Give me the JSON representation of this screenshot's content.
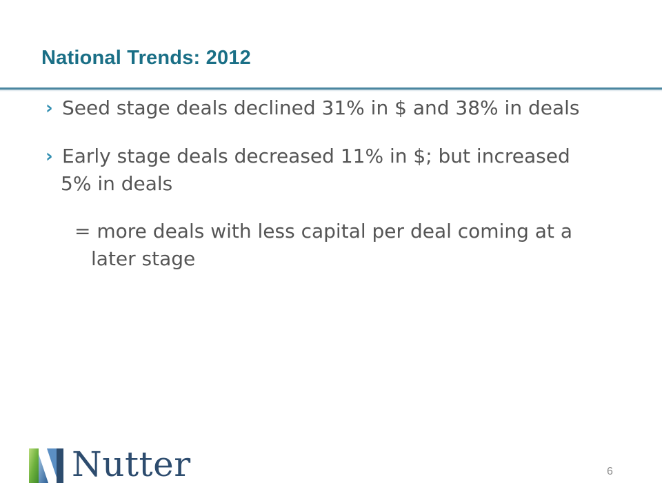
{
  "slide": {
    "title": "National Trends: 2012",
    "bullets": [
      {
        "lines": [
          "Seed stage deals declined 31% in $ and 38% in deals"
        ]
      },
      {
        "lines": [
          "Early stage deals decreased 11% in $; but increased",
          "5% in deals"
        ]
      }
    ],
    "sub": {
      "lines": [
        "= more deals with less capital per deal coming at a",
        "later stage"
      ]
    },
    "bullet_glyph": "›",
    "page_number": "6",
    "logo": {
      "word": "Nutter",
      "icon": "nutter-logo-mark"
    },
    "colors": {
      "title": "#1a6f86",
      "rule": "#4a86a0",
      "bullet": "#2f8db0",
      "text": "#555555",
      "logo": "#2d4c6e"
    }
  }
}
